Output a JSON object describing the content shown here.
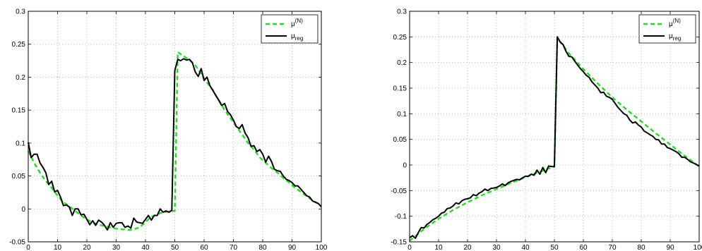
{
  "chart_data": [
    {
      "type": "line",
      "title": "",
      "xlabel": "",
      "ylabel": "",
      "xlim": [
        0,
        100
      ],
      "ylim": [
        -0.05,
        0.3
      ],
      "xticks": [
        0,
        10,
        20,
        30,
        40,
        50,
        60,
        70,
        80,
        90,
        100
      ],
      "yticks": [
        -0.05,
        0,
        0.05,
        0.1,
        0.15,
        0.2,
        0.25,
        0.3
      ],
      "grid": true,
      "legend": {
        "placement": "top-right",
        "entries": [
          {
            "base": "μ",
            "sup": "(N)",
            "sub": "",
            "style": "dashed",
            "color": "#22dd22"
          },
          {
            "base": "μ",
            "sup": "",
            "sub": "reg",
            "style": "solid",
            "color": "#000000"
          }
        ]
      },
      "series": [
        {
          "color": "#22dd22",
          "style": "dashed",
          "x": [
            0,
            2,
            4,
            6,
            8,
            10,
            12,
            14,
            16,
            18,
            20,
            22,
            24,
            26,
            28,
            30,
            32,
            34,
            36,
            38,
            40,
            42,
            44,
            46,
            48,
            50,
            51,
            53,
            55,
            57,
            59,
            61,
            63,
            65,
            67,
            69,
            71,
            73,
            75,
            77,
            79,
            81,
            83,
            85,
            87,
            89,
            91,
            93,
            95,
            97,
            99,
            100
          ],
          "y": [
            0.088,
            0.07,
            0.055,
            0.042,
            0.032,
            0.02,
            0.01,
            0.004,
            -0.003,
            -0.01,
            -0.016,
            -0.021,
            -0.024,
            -0.026,
            -0.028,
            -0.03,
            -0.031,
            -0.032,
            -0.031,
            -0.028,
            -0.02,
            -0.012,
            -0.008,
            -0.005,
            -0.004,
            -0.003,
            0.238,
            0.232,
            0.226,
            0.218,
            0.205,
            0.192,
            0.18,
            0.165,
            0.15,
            0.138,
            0.125,
            0.113,
            0.1,
            0.09,
            0.078,
            0.07,
            0.062,
            0.055,
            0.047,
            0.04,
            0.032,
            0.026,
            0.019,
            0.013,
            0.008,
            0.005
          ]
        },
        {
          "color": "#000000",
          "style": "solid",
          "x": [
            0,
            1,
            2,
            3,
            4,
            5,
            6,
            7,
            8,
            9,
            10,
            11,
            12,
            13,
            14,
            15,
            16,
            17,
            18,
            19,
            20,
            21,
            22,
            23,
            24,
            25,
            26,
            27,
            28,
            29,
            30,
            31,
            32,
            33,
            34,
            35,
            36,
            37,
            38,
            39,
            40,
            41,
            42,
            43,
            44,
            45,
            46,
            47,
            48,
            49,
            50,
            51,
            52,
            53,
            54,
            55,
            56,
            57,
            58,
            59,
            60,
            61,
            62,
            63,
            64,
            65,
            66,
            67,
            68,
            69,
            70,
            71,
            72,
            73,
            74,
            75,
            76,
            77,
            78,
            79,
            80,
            81,
            82,
            83,
            84,
            85,
            86,
            87,
            88,
            89,
            90,
            91,
            92,
            93,
            94,
            95,
            96,
            97,
            98,
            99,
            100
          ],
          "y": [
            0.101,
            0.078,
            0.083,
            0.083,
            0.07,
            0.063,
            0.055,
            0.037,
            0.042,
            0.026,
            0.028,
            0.018,
            0.005,
            0.006,
            0.003,
            -0.01,
            0,
            0,
            -0.009,
            -0.008,
            -0.016,
            -0.024,
            -0.018,
            -0.025,
            -0.017,
            -0.02,
            -0.025,
            -0.032,
            -0.021,
            -0.028,
            -0.022,
            -0.021,
            -0.021,
            -0.028,
            -0.026,
            -0.029,
            -0.014,
            -0.02,
            -0.021,
            -0.022,
            -0.016,
            -0.01,
            -0.017,
            -0.01,
            -0.01,
            0,
            -0.005,
            -0.003,
            -0.005,
            -0.002,
            0.21,
            0.227,
            0.225,
            0.228,
            0.226,
            0.227,
            0.222,
            0.208,
            0.201,
            0.213,
            0.195,
            0.2,
            0.187,
            0.18,
            0.172,
            0.165,
            0.157,
            0.16,
            0.148,
            0.143,
            0.135,
            0.125,
            0.122,
            0.128,
            0.115,
            0.108,
            0.095,
            0.096,
            0.087,
            0.09,
            0.083,
            0.071,
            0.08,
            0.072,
            0.06,
            0.058,
            0.057,
            0.05,
            0.045,
            0.043,
            0.04,
            0.035,
            0.035,
            0.03,
            0.025,
            0.02,
            0.018,
            0.012,
            0.01,
            0.008,
            0.003
          ]
        }
      ]
    },
    {
      "type": "line",
      "title": "",
      "xlabel": "",
      "ylabel": "",
      "xlim": [
        0,
        100
      ],
      "ylim": [
        -0.15,
        0.3
      ],
      "xticks": [
        0,
        10,
        20,
        30,
        40,
        50,
        60,
        70,
        80,
        90,
        100
      ],
      "yticks": [
        -0.15,
        -0.1,
        -0.05,
        0,
        0.05,
        0.1,
        0.15,
        0.2,
        0.25,
        0.3
      ],
      "grid": true,
      "legend": {
        "placement": "top-right",
        "entries": [
          {
            "base": "μ",
            "sup": "(N)",
            "sub": "",
            "style": "dashed",
            "color": "#22dd22"
          },
          {
            "base": "μ",
            "sup": "",
            "sub": "reg",
            "style": "solid",
            "color": "#000000"
          }
        ]
      },
      "series": [
        {
          "color": "#22dd22",
          "style": "dashed",
          "x": [
            0,
            5,
            10,
            15,
            20,
            25,
            30,
            35,
            40,
            45,
            49,
            50,
            51,
            55,
            60,
            65,
            70,
            75,
            80,
            85,
            90,
            95,
            100
          ],
          "y": [
            -0.148,
            -0.125,
            -0.105,
            -0.088,
            -0.073,
            -0.059,
            -0.047,
            -0.035,
            -0.024,
            -0.013,
            -0.005,
            -0.004,
            0.248,
            0.218,
            0.187,
            0.159,
            0.132,
            0.108,
            0.085,
            0.062,
            0.04,
            0.018,
            -0.003
          ]
        },
        {
          "color": "#000000",
          "style": "solid",
          "x": [
            0,
            1,
            2,
            3,
            4,
            5,
            6,
            7,
            8,
            9,
            10,
            11,
            12,
            13,
            14,
            15,
            16,
            17,
            18,
            19,
            20,
            21,
            22,
            23,
            24,
            25,
            26,
            27,
            28,
            29,
            30,
            31,
            32,
            33,
            34,
            35,
            36,
            37,
            38,
            39,
            40,
            41,
            42,
            43,
            44,
            45,
            46,
            47,
            48,
            49,
            50,
            51,
            52,
            53,
            54,
            55,
            56,
            57,
            58,
            59,
            60,
            61,
            62,
            63,
            64,
            65,
            66,
            67,
            68,
            69,
            70,
            71,
            72,
            73,
            74,
            75,
            76,
            77,
            78,
            79,
            80,
            81,
            82,
            83,
            84,
            85,
            86,
            87,
            88,
            89,
            90,
            91,
            92,
            93,
            94,
            95,
            96,
            97,
            98,
            99,
            100
          ],
          "y": [
            -0.142,
            -0.138,
            -0.143,
            -0.132,
            -0.122,
            -0.123,
            -0.116,
            -0.112,
            -0.107,
            -0.104,
            -0.1,
            -0.094,
            -0.092,
            -0.085,
            -0.084,
            -0.08,
            -0.074,
            -0.076,
            -0.07,
            -0.067,
            -0.066,
            -0.064,
            -0.058,
            -0.06,
            -0.055,
            -0.052,
            -0.047,
            -0.05,
            -0.046,
            -0.045,
            -0.044,
            -0.041,
            -0.037,
            -0.04,
            -0.035,
            -0.032,
            -0.03,
            -0.028,
            -0.029,
            -0.025,
            -0.022,
            -0.022,
            -0.018,
            -0.02,
            -0.01,
            -0.018,
            -0.005,
            -0.015,
            -0.002,
            -0.003,
            -0.003,
            0.25,
            0.24,
            0.235,
            0.222,
            0.212,
            0.211,
            0.203,
            0.195,
            0.188,
            0.182,
            0.175,
            0.171,
            0.162,
            0.156,
            0.15,
            0.141,
            0.142,
            0.134,
            0.132,
            0.128,
            0.12,
            0.112,
            0.106,
            0.1,
            0.097,
            0.088,
            0.082,
            0.084,
            0.078,
            0.074,
            0.066,
            0.063,
            0.059,
            0.056,
            0.05,
            0.049,
            0.041,
            0.041,
            0.034,
            0.032,
            0.029,
            0.026,
            0.022,
            0.015,
            0.015,
            0.011,
            0.006,
            0.004,
            0.001,
            -0.002
          ]
        }
      ]
    }
  ]
}
